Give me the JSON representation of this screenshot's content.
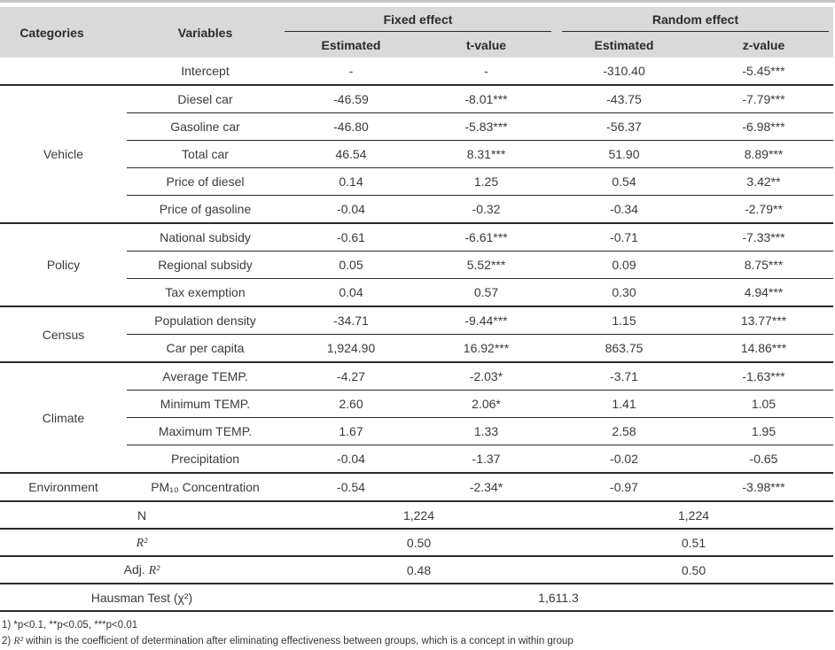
{
  "colors": {
    "header_bg": "#d9d9d9",
    "line": "#2a2a2a",
    "text": "#3a3a3a"
  },
  "table": {
    "header": {
      "categories": "Categories",
      "variables": "Variables",
      "groups": [
        {
          "label": "Fixed effect",
          "cols": [
            "Estimated",
            "t-value"
          ]
        },
        {
          "label": "Random effect",
          "cols": [
            "Estimated",
            "z-value"
          ]
        }
      ]
    },
    "groups": [
      {
        "category": "",
        "rows": [
          {
            "variable": "Intercept",
            "values": [
              "-",
              "-",
              "-310.40",
              "-5.45***"
            ]
          }
        ]
      },
      {
        "category": "Vehicle",
        "rows": [
          {
            "variable": "Diesel car",
            "values": [
              "-46.59",
              "-8.01***",
              "-43.75",
              "-7.79***"
            ]
          },
          {
            "variable": "Gasoline car",
            "values": [
              "-46.80",
              "-5.83***",
              "-56.37",
              "-6.98***"
            ]
          },
          {
            "variable": "Total car",
            "values": [
              "46.54",
              "8.31***",
              "51.90",
              "8.89***"
            ]
          },
          {
            "variable": "Price of diesel",
            "values": [
              "0.14",
              "1.25",
              "0.54",
              "3.42**"
            ]
          },
          {
            "variable": "Price of gasoline",
            "values": [
              "-0.04",
              "-0.32",
              "-0.34",
              "-2.79**"
            ]
          }
        ]
      },
      {
        "category": "Policy",
        "rows": [
          {
            "variable": "National subsidy",
            "values": [
              "-0.61",
              "-6.61***",
              "-0.71",
              "-7.33***"
            ]
          },
          {
            "variable": "Regional subsidy",
            "values": [
              "0.05",
              "5.52***",
              "0.09",
              "8.75***"
            ]
          },
          {
            "variable": "Tax exemption",
            "values": [
              "0.04",
              "0.57",
              "0.30",
              "4.94***"
            ]
          }
        ]
      },
      {
        "category": "Census",
        "rows": [
          {
            "variable": "Population density",
            "values": [
              "-34.71",
              "-9.44***",
              "1.15",
              "13.77***"
            ]
          },
          {
            "variable": "Car per capita",
            "values": [
              "1,924.90",
              "16.92***",
              "863.75",
              "14.86***"
            ]
          }
        ]
      },
      {
        "category": "Climate",
        "rows": [
          {
            "variable": "Average TEMP.",
            "values": [
              "-4.27",
              "-2.03*",
              "-3.71",
              "-1.63***"
            ]
          },
          {
            "variable": "Minimum TEMP.",
            "values": [
              "2.60",
              "2.06*",
              "1.41",
              "1.05"
            ]
          },
          {
            "variable": "Maximum TEMP.",
            "values": [
              "1.67",
              "1.33",
              "2.58",
              "1.95"
            ]
          },
          {
            "variable": "Precipitation",
            "values": [
              "-0.04",
              "-1.37",
              "-0.02",
              "-0.65"
            ]
          }
        ]
      },
      {
        "category": "Environment",
        "rows": [
          {
            "variable": "PM₁₀ Concentration",
            "values": [
              "-0.54",
              "-2.34*",
              "-0.97",
              "-3.98***"
            ]
          }
        ]
      }
    ],
    "summary": [
      {
        "label": "N",
        "fixed": "1,224",
        "random": "1,224"
      },
      {
        "label": "R²",
        "fixed": "0.50",
        "random": "0.51"
      },
      {
        "label": "Adj. R²",
        "fixed": "0.48",
        "random": "0.50"
      }
    ],
    "hausman": {
      "label": "Hausman Test (χ²)",
      "value": "1,611.3"
    }
  },
  "footnotes": [
    "1) *p<0.1, **p<0.05, ***p<0.01",
    "2) R² within is the coefficient of determination after eliminating effectiveness between groups, which is a concept in within group"
  ]
}
